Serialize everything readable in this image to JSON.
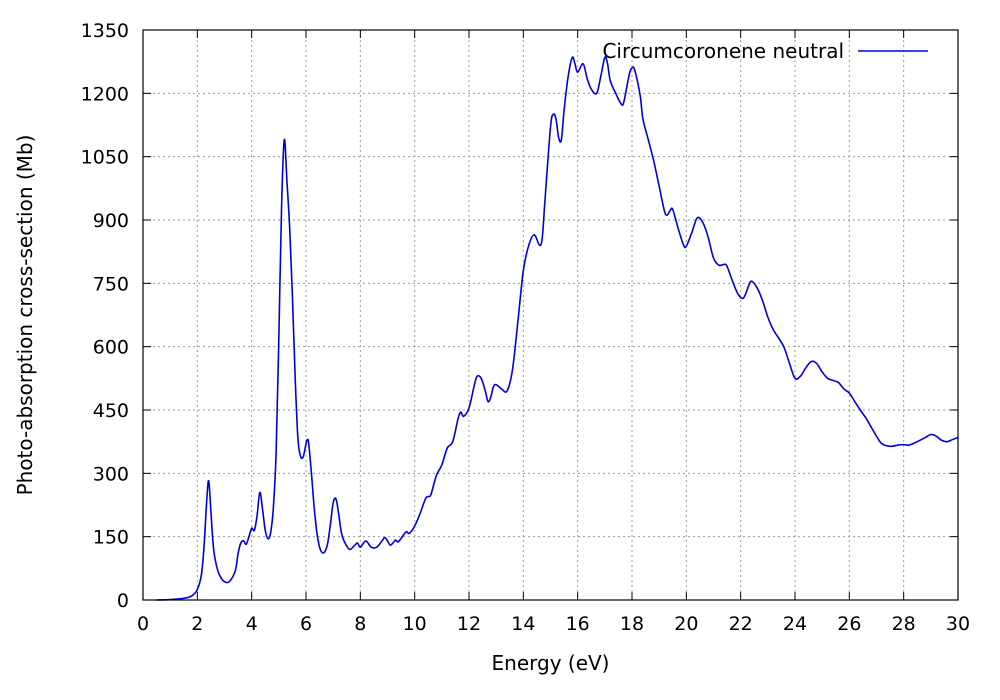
{
  "chart_data": {
    "type": "line",
    "xlabel": "Energy (eV)",
    "ylabel": "Photo-absorption cross-section (Mb)",
    "xlim": [
      0,
      30
    ],
    "ylim": [
      0,
      1350
    ],
    "xticks": [
      0,
      2,
      4,
      6,
      8,
      10,
      12,
      14,
      16,
      18,
      20,
      22,
      24,
      26,
      28,
      30
    ],
    "yticks": [
      0,
      150,
      300,
      450,
      600,
      750,
      900,
      1050,
      1200,
      1350
    ],
    "grid": true,
    "legend_position": "top-right",
    "series": [
      {
        "name": "Circumcoronene neutral",
        "color": "#0000dd",
        "points": [
          [
            0.5,
            0
          ],
          [
            1.0,
            1
          ],
          [
            1.5,
            4
          ],
          [
            1.8,
            10
          ],
          [
            2.0,
            25
          ],
          [
            2.15,
            60
          ],
          [
            2.25,
            130
          ],
          [
            2.35,
            240
          ],
          [
            2.42,
            282
          ],
          [
            2.5,
            210
          ],
          [
            2.6,
            120
          ],
          [
            2.75,
            70
          ],
          [
            2.9,
            50
          ],
          [
            3.05,
            42
          ],
          [
            3.2,
            45
          ],
          [
            3.4,
            70
          ],
          [
            3.5,
            110
          ],
          [
            3.6,
            135
          ],
          [
            3.7,
            140
          ],
          [
            3.8,
            132
          ],
          [
            3.9,
            150
          ],
          [
            4.0,
            170
          ],
          [
            4.1,
            165
          ],
          [
            4.2,
            200
          ],
          [
            4.3,
            255
          ],
          [
            4.4,
            215
          ],
          [
            4.5,
            165
          ],
          [
            4.6,
            145
          ],
          [
            4.7,
            160
          ],
          [
            4.8,
            220
          ],
          [
            4.9,
            350
          ],
          [
            5.0,
            620
          ],
          [
            5.1,
            930
          ],
          [
            5.2,
            1090
          ],
          [
            5.3,
            990
          ],
          [
            5.4,
            880
          ],
          [
            5.5,
            720
          ],
          [
            5.6,
            530
          ],
          [
            5.7,
            385
          ],
          [
            5.8,
            340
          ],
          [
            5.9,
            340
          ],
          [
            6.0,
            370
          ],
          [
            6.05,
            380
          ],
          [
            6.1,
            370
          ],
          [
            6.2,
            300
          ],
          [
            6.3,
            220
          ],
          [
            6.4,
            160
          ],
          [
            6.5,
            125
          ],
          [
            6.6,
            112
          ],
          [
            6.7,
            115
          ],
          [
            6.8,
            135
          ],
          [
            6.9,
            180
          ],
          [
            7.0,
            230
          ],
          [
            7.1,
            240
          ],
          [
            7.2,
            205
          ],
          [
            7.3,
            160
          ],
          [
            7.4,
            140
          ],
          [
            7.6,
            120
          ],
          [
            7.8,
            130
          ],
          [
            7.9,
            135
          ],
          [
            8.0,
            125
          ],
          [
            8.2,
            140
          ],
          [
            8.4,
            125
          ],
          [
            8.6,
            125
          ],
          [
            8.8,
            140
          ],
          [
            8.9,
            148
          ],
          [
            9.0,
            140
          ],
          [
            9.1,
            130
          ],
          [
            9.2,
            135
          ],
          [
            9.3,
            142
          ],
          [
            9.4,
            138
          ],
          [
            9.6,
            155
          ],
          [
            9.7,
            162
          ],
          [
            9.8,
            158
          ],
          [
            10.0,
            175
          ],
          [
            10.2,
            205
          ],
          [
            10.4,
            240
          ],
          [
            10.5,
            245
          ],
          [
            10.6,
            250
          ],
          [
            10.8,
            295
          ],
          [
            11.0,
            320
          ],
          [
            11.2,
            360
          ],
          [
            11.4,
            375
          ],
          [
            11.6,
            430
          ],
          [
            11.7,
            445
          ],
          [
            11.8,
            435
          ],
          [
            12.0,
            455
          ],
          [
            12.2,
            510
          ],
          [
            12.3,
            530
          ],
          [
            12.45,
            525
          ],
          [
            12.6,
            495
          ],
          [
            12.7,
            470
          ],
          [
            12.8,
            480
          ],
          [
            12.9,
            505
          ],
          [
            13.0,
            510
          ],
          [
            13.2,
            500
          ],
          [
            13.4,
            495
          ],
          [
            13.6,
            545
          ],
          [
            13.8,
            660
          ],
          [
            14.0,
            780
          ],
          [
            14.2,
            840
          ],
          [
            14.4,
            865
          ],
          [
            14.6,
            840
          ],
          [
            14.7,
            860
          ],
          [
            14.8,
            950
          ],
          [
            15.0,
            1120
          ],
          [
            15.1,
            1150
          ],
          [
            15.2,
            1140
          ],
          [
            15.3,
            1095
          ],
          [
            15.4,
            1090
          ],
          [
            15.5,
            1160
          ],
          [
            15.65,
            1240
          ],
          [
            15.8,
            1285
          ],
          [
            15.9,
            1270
          ],
          [
            16.0,
            1250
          ],
          [
            16.2,
            1270
          ],
          [
            16.35,
            1235
          ],
          [
            16.5,
            1210
          ],
          [
            16.7,
            1200
          ],
          [
            16.85,
            1240
          ],
          [
            17.0,
            1285
          ],
          [
            17.1,
            1270
          ],
          [
            17.2,
            1230
          ],
          [
            17.4,
            1200
          ],
          [
            17.6,
            1175
          ],
          [
            17.7,
            1180
          ],
          [
            17.9,
            1245
          ],
          [
            18.0,
            1260
          ],
          [
            18.1,
            1255
          ],
          [
            18.3,
            1195
          ],
          [
            18.4,
            1140
          ],
          [
            18.6,
            1090
          ],
          [
            18.8,
            1040
          ],
          [
            19.0,
            980
          ],
          [
            19.2,
            920
          ],
          [
            19.3,
            912
          ],
          [
            19.4,
            922
          ],
          [
            19.5,
            925
          ],
          [
            19.7,
            880
          ],
          [
            19.9,
            840
          ],
          [
            20.0,
            838
          ],
          [
            20.2,
            870
          ],
          [
            20.4,
            905
          ],
          [
            20.6,
            895
          ],
          [
            20.8,
            860
          ],
          [
            21.0,
            810
          ],
          [
            21.2,
            793
          ],
          [
            21.4,
            795
          ],
          [
            21.5,
            790
          ],
          [
            21.7,
            755
          ],
          [
            21.9,
            725
          ],
          [
            22.1,
            715
          ],
          [
            22.3,
            745
          ],
          [
            22.4,
            755
          ],
          [
            22.6,
            740
          ],
          [
            22.8,
            710
          ],
          [
            23.0,
            670
          ],
          [
            23.2,
            640
          ],
          [
            23.4,
            620
          ],
          [
            23.6,
            598
          ],
          [
            23.8,
            560
          ],
          [
            24.0,
            525
          ],
          [
            24.2,
            530
          ],
          [
            24.4,
            550
          ],
          [
            24.6,
            565
          ],
          [
            24.8,
            560
          ],
          [
            25.0,
            540
          ],
          [
            25.2,
            525
          ],
          [
            25.4,
            520
          ],
          [
            25.6,
            515
          ],
          [
            25.8,
            500
          ],
          [
            26.0,
            490
          ],
          [
            26.2,
            470
          ],
          [
            26.4,
            450
          ],
          [
            26.6,
            432
          ],
          [
            26.8,
            410
          ],
          [
            27.0,
            388
          ],
          [
            27.2,
            370
          ],
          [
            27.5,
            364
          ],
          [
            27.8,
            367
          ],
          [
            28.0,
            368
          ],
          [
            28.2,
            367
          ],
          [
            28.5,
            375
          ],
          [
            28.8,
            385
          ],
          [
            29.0,
            392
          ],
          [
            29.2,
            388
          ],
          [
            29.4,
            378
          ],
          [
            29.6,
            375
          ],
          [
            29.8,
            380
          ],
          [
            30.0,
            385
          ]
        ]
      }
    ]
  }
}
